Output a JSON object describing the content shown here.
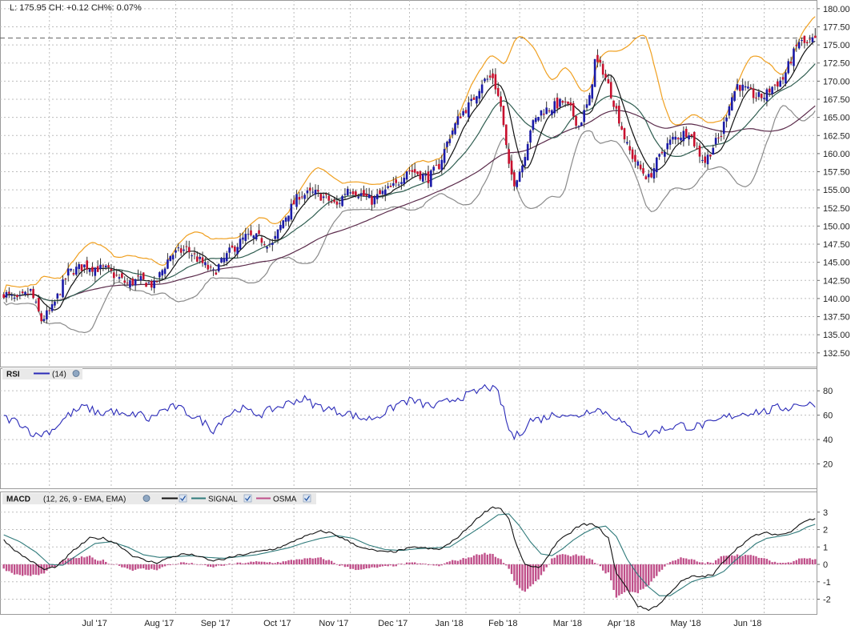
{
  "header": {
    "readout": "L: 175.95 CH: +0.12 CH%: 0.07%"
  },
  "rsi_legend": {
    "name": "RSI",
    "params": "(14)"
  },
  "macd_legend": {
    "name": "MACD",
    "params": "(12, 26, 9 - EMA, EMA)",
    "signal_label": "SIGNAL",
    "osma_label": "OSMA"
  },
  "colors": {
    "up_candle": "#1a1aa8",
    "down_candle": "#c8102e",
    "bollinger_upper": "#f0a020",
    "bollinger_lower": "#8a8a8a",
    "ma_short": "#111111",
    "ma_mid": "#2f5d50",
    "ma_long": "#5a2a4a",
    "rsi_line": "#2a2ab8",
    "macd_line": "#111111",
    "signal_line": "#2f7a7a",
    "osma_bars": "#c0508a",
    "grid": "#bdbdbd",
    "last_price_line": "#666666"
  },
  "chart_data": [
    {
      "type": "candlestick",
      "y_ticks": [
        "180.00",
        "177.50",
        "175.00",
        "172.50",
        "170.00",
        "167.50",
        "165.00",
        "162.50",
        "160.00",
        "157.50",
        "155.00",
        "152.50",
        "150.00",
        "147.50",
        "145.00",
        "142.50",
        "140.00",
        "137.50",
        "135.00",
        "132.50"
      ],
      "ylim": [
        130.6,
        181.2
      ],
      "x_ticks": [
        "Jul '17",
        "Aug '17",
        "Sep '17",
        "Oct '17",
        "Nov '17",
        "Dec '17",
        "Jan '18",
        "Feb '18",
        "Mar '18",
        "Apr '18",
        "May '18",
        "Jun '18"
      ],
      "last_price": 175.95,
      "close_anchors": [
        [
          0,
          140.8
        ],
        [
          5,
          139.6
        ],
        [
          10,
          141.0
        ],
        [
          14,
          137.0
        ],
        [
          18,
          138.6
        ],
        [
          24,
          143.6
        ],
        [
          30,
          144.5
        ],
        [
          38,
          144.0
        ],
        [
          42,
          143.0
        ],
        [
          46,
          142.0
        ],
        [
          50,
          142.6
        ],
        [
          56,
          141.8
        ],
        [
          62,
          146.0
        ],
        [
          68,
          146.8
        ],
        [
          72,
          145.5
        ],
        [
          78,
          143.5
        ],
        [
          84,
          146.4
        ],
        [
          90,
          148.5
        ],
        [
          95,
          148.3
        ],
        [
          100,
          147.4
        ],
        [
          104,
          150.8
        ],
        [
          110,
          154.3
        ],
        [
          116,
          154.5
        ],
        [
          120,
          153.8
        ],
        [
          124,
          152.8
        ],
        [
          128,
          155.3
        ],
        [
          132,
          154.6
        ],
        [
          137,
          153.5
        ],
        [
          142,
          154.8
        ],
        [
          146,
          155.6
        ],
        [
          150,
          157.8
        ],
        [
          154,
          157.3
        ],
        [
          158,
          156.6
        ],
        [
          162,
          158.4
        ],
        [
          166,
          162.5
        ],
        [
          170,
          165.4
        ],
        [
          174,
          167.0
        ],
        [
          178,
          169.9
        ],
        [
          182,
          170.6
        ],
        [
          185,
          166.5
        ],
        [
          188,
          158.0
        ],
        [
          190,
          156.1
        ],
        [
          193,
          158.5
        ],
        [
          196,
          163.5
        ],
        [
          200,
          165.8
        ],
        [
          204,
          166.4
        ],
        [
          208,
          167.1
        ],
        [
          211,
          166.0
        ],
        [
          214,
          163.8
        ],
        [
          218,
          167.5
        ],
        [
          220,
          172.8
        ],
        [
          223,
          171.5
        ],
        [
          226,
          168.3
        ],
        [
          229,
          164.8
        ],
        [
          232,
          161.0
        ],
        [
          234,
          159.6
        ],
        [
          237,
          157.8
        ],
        [
          240,
          156.6
        ],
        [
          243,
          158.8
        ],
        [
          246,
          160.8
        ],
        [
          249,
          162.0
        ],
        [
          252,
          162.6
        ],
        [
          255,
          163.2
        ],
        [
          258,
          160.5
        ],
        [
          261,
          158.9
        ],
        [
          264,
          161.0
        ],
        [
          267,
          162.6
        ],
        [
          270,
          167.0
        ],
        [
          273,
          169.5
        ],
        [
          276,
          168.8
        ],
        [
          280,
          167.8
        ],
        [
          283,
          167.9
        ],
        [
          286,
          169.2
        ],
        [
          290,
          170.3
        ],
        [
          293,
          173.0
        ],
        [
          296,
          175.5
        ],
        [
          299,
          175.0
        ],
        [
          302,
          175.95
        ]
      ]
    },
    {
      "type": "line",
      "name": "RSI",
      "y_ticks": [
        "80",
        "60",
        "40",
        "20"
      ],
      "ylim": [
        0,
        88
      ],
      "anchors": [
        [
          0,
          58
        ],
        [
          6,
          54
        ],
        [
          12,
          43
        ],
        [
          18,
          48
        ],
        [
          24,
          60
        ],
        [
          30,
          67
        ],
        [
          36,
          61
        ],
        [
          40,
          64
        ],
        [
          46,
          58
        ],
        [
          50,
          62
        ],
        [
          54,
          56
        ],
        [
          58,
          63
        ],
        [
          64,
          67
        ],
        [
          70,
          60
        ],
        [
          74,
          55
        ],
        [
          78,
          48
        ],
        [
          82,
          58
        ],
        [
          88,
          66
        ],
        [
          92,
          62
        ],
        [
          96,
          61
        ],
        [
          100,
          65
        ],
        [
          104,
          68
        ],
        [
          108,
          72
        ],
        [
          112,
          73
        ],
        [
          116,
          68
        ],
        [
          120,
          66
        ],
        [
          124,
          63
        ],
        [
          128,
          62
        ],
        [
          132,
          58
        ],
        [
          136,
          57
        ],
        [
          140,
          60
        ],
        [
          144,
          65
        ],
        [
          148,
          71
        ],
        [
          152,
          72
        ],
        [
          156,
          69
        ],
        [
          160,
          67
        ],
        [
          164,
          70
        ],
        [
          168,
          74
        ],
        [
          172,
          76
        ],
        [
          176,
          79
        ],
        [
          180,
          84
        ],
        [
          184,
          78
        ],
        [
          186,
          64
        ],
        [
          188,
          48
        ],
        [
          190,
          42
        ],
        [
          192,
          45
        ],
        [
          194,
          50
        ],
        [
          196,
          56
        ],
        [
          200,
          57
        ],
        [
          204,
          60
        ],
        [
          208,
          62
        ],
        [
          212,
          58
        ],
        [
          216,
          62
        ],
        [
          220,
          66
        ],
        [
          224,
          62
        ],
        [
          228,
          58
        ],
        [
          232,
          50
        ],
        [
          236,
          47
        ],
        [
          240,
          44
        ],
        [
          244,
          48
        ],
        [
          248,
          50
        ],
        [
          252,
          52
        ],
        [
          256,
          50
        ],
        [
          260,
          52
        ],
        [
          264,
          53
        ],
        [
          268,
          58
        ],
        [
          272,
          60
        ],
        [
          276,
          62
        ],
        [
          280,
          63
        ],
        [
          284,
          63
        ],
        [
          288,
          66
        ],
        [
          292,
          66
        ],
        [
          296,
          70
        ],
        [
          299,
          68
        ],
        [
          302,
          70
        ]
      ]
    },
    {
      "type": "line+bar",
      "name": "MACD",
      "y_ticks": [
        "3",
        "2",
        "1",
        "0",
        "-1",
        "-2"
      ],
      "ylim": [
        -2.85,
        3.45
      ],
      "macd_anchors": [
        [
          0,
          1.4
        ],
        [
          5,
          0.7
        ],
        [
          10,
          0.2
        ],
        [
          15,
          -0.3
        ],
        [
          20,
          -0.1
        ],
        [
          26,
          0.8
        ],
        [
          32,
          1.5
        ],
        [
          37,
          1.5
        ],
        [
          42,
          1.2
        ],
        [
          48,
          0.5
        ],
        [
          53,
          0.2
        ],
        [
          57,
          0.1
        ],
        [
          62,
          0.4
        ],
        [
          67,
          0.6
        ],
        [
          72,
          0.5
        ],
        [
          77,
          0.2
        ],
        [
          82,
          0.3
        ],
        [
          87,
          0.5
        ],
        [
          92,
          0.65
        ],
        [
          97,
          0.8
        ],
        [
          101,
          0.9
        ],
        [
          105,
          1.1
        ],
        [
          110,
          1.5
        ],
        [
          114,
          1.7
        ],
        [
          118,
          1.9
        ],
        [
          122,
          1.8
        ],
        [
          126,
          1.5
        ],
        [
          130,
          1.2
        ],
        [
          134,
          0.9
        ],
        [
          138,
          0.8
        ],
        [
          142,
          0.7
        ],
        [
          146,
          0.75
        ],
        [
          150,
          0.9
        ],
        [
          154,
          1.0
        ],
        [
          158,
          0.9
        ],
        [
          162,
          0.85
        ],
        [
          166,
          1.2
        ],
        [
          170,
          1.7
        ],
        [
          174,
          2.3
        ],
        [
          178,
          2.9
        ],
        [
          182,
          3.3
        ],
        [
          185,
          3.2
        ],
        [
          188,
          2.6
        ],
        [
          191,
          1.0
        ],
        [
          194,
          0.0
        ],
        [
          197,
          -0.2
        ],
        [
          200,
          -0.1
        ],
        [
          203,
          0.6
        ],
        [
          206,
          1.3
        ],
        [
          210,
          1.7
        ],
        [
          213,
          2.1
        ],
        [
          216,
          2.3
        ],
        [
          219,
          2.3
        ],
        [
          222,
          2.0
        ],
        [
          225,
          1.5
        ],
        [
          228,
          -0.5
        ],
        [
          232,
          -1.4
        ],
        [
          236,
          -2.4
        ],
        [
          240,
          -2.6
        ],
        [
          244,
          -2.3
        ],
        [
          248,
          -1.6
        ],
        [
          252,
          -1.0
        ],
        [
          256,
          -0.7
        ],
        [
          260,
          -0.7
        ],
        [
          264,
          -0.6
        ],
        [
          268,
          0.2
        ],
        [
          272,
          0.8
        ],
        [
          276,
          1.3
        ],
        [
          280,
          1.7
        ],
        [
          284,
          1.8
        ],
        [
          288,
          1.7
        ],
        [
          292,
          1.8
        ],
        [
          296,
          2.3
        ],
        [
          299,
          2.55
        ],
        [
          302,
          2.6
        ]
      ],
      "signal_anchors": [
        [
          0,
          1.7
        ],
        [
          6,
          1.3
        ],
        [
          12,
          0.7
        ],
        [
          17,
          0.0
        ],
        [
          22,
          -0.05
        ],
        [
          28,
          0.6
        ],
        [
          34,
          1.2
        ],
        [
          40,
          1.3
        ],
        [
          46,
          1.0
        ],
        [
          52,
          0.55
        ],
        [
          58,
          0.4
        ],
        [
          64,
          0.45
        ],
        [
          70,
          0.5
        ],
        [
          76,
          0.4
        ],
        [
          82,
          0.35
        ],
        [
          88,
          0.45
        ],
        [
          94,
          0.55
        ],
        [
          100,
          0.75
        ],
        [
          106,
          0.95
        ],
        [
          112,
          1.25
        ],
        [
          118,
          1.5
        ],
        [
          124,
          1.65
        ],
        [
          130,
          1.5
        ],
        [
          136,
          1.1
        ],
        [
          142,
          0.85
        ],
        [
          148,
          0.8
        ],
        [
          154,
          0.9
        ],
        [
          160,
          0.95
        ],
        [
          166,
          1.0
        ],
        [
          172,
          1.6
        ],
        [
          178,
          2.2
        ],
        [
          184,
          2.85
        ],
        [
          188,
          2.9
        ],
        [
          192,
          2.2
        ],
        [
          196,
          1.3
        ],
        [
          200,
          0.6
        ],
        [
          204,
          0.5
        ],
        [
          208,
          0.9
        ],
        [
          212,
          1.4
        ],
        [
          216,
          1.8
        ],
        [
          220,
          2.1
        ],
        [
          224,
          2.2
        ],
        [
          228,
          1.6
        ],
        [
          232,
          0.3
        ],
        [
          236,
          -0.6
        ],
        [
          240,
          -1.3
        ],
        [
          244,
          -1.8
        ],
        [
          248,
          -1.8
        ],
        [
          252,
          -1.4
        ],
        [
          256,
          -1.0
        ],
        [
          260,
          -0.8
        ],
        [
          264,
          -0.7
        ],
        [
          268,
          -0.4
        ],
        [
          272,
          0.2
        ],
        [
          276,
          0.7
        ],
        [
          280,
          1.2
        ],
        [
          284,
          1.5
        ],
        [
          288,
          1.6
        ],
        [
          292,
          1.7
        ],
        [
          296,
          1.9
        ],
        [
          299,
          2.15
        ],
        [
          302,
          2.3
        ]
      ]
    }
  ]
}
